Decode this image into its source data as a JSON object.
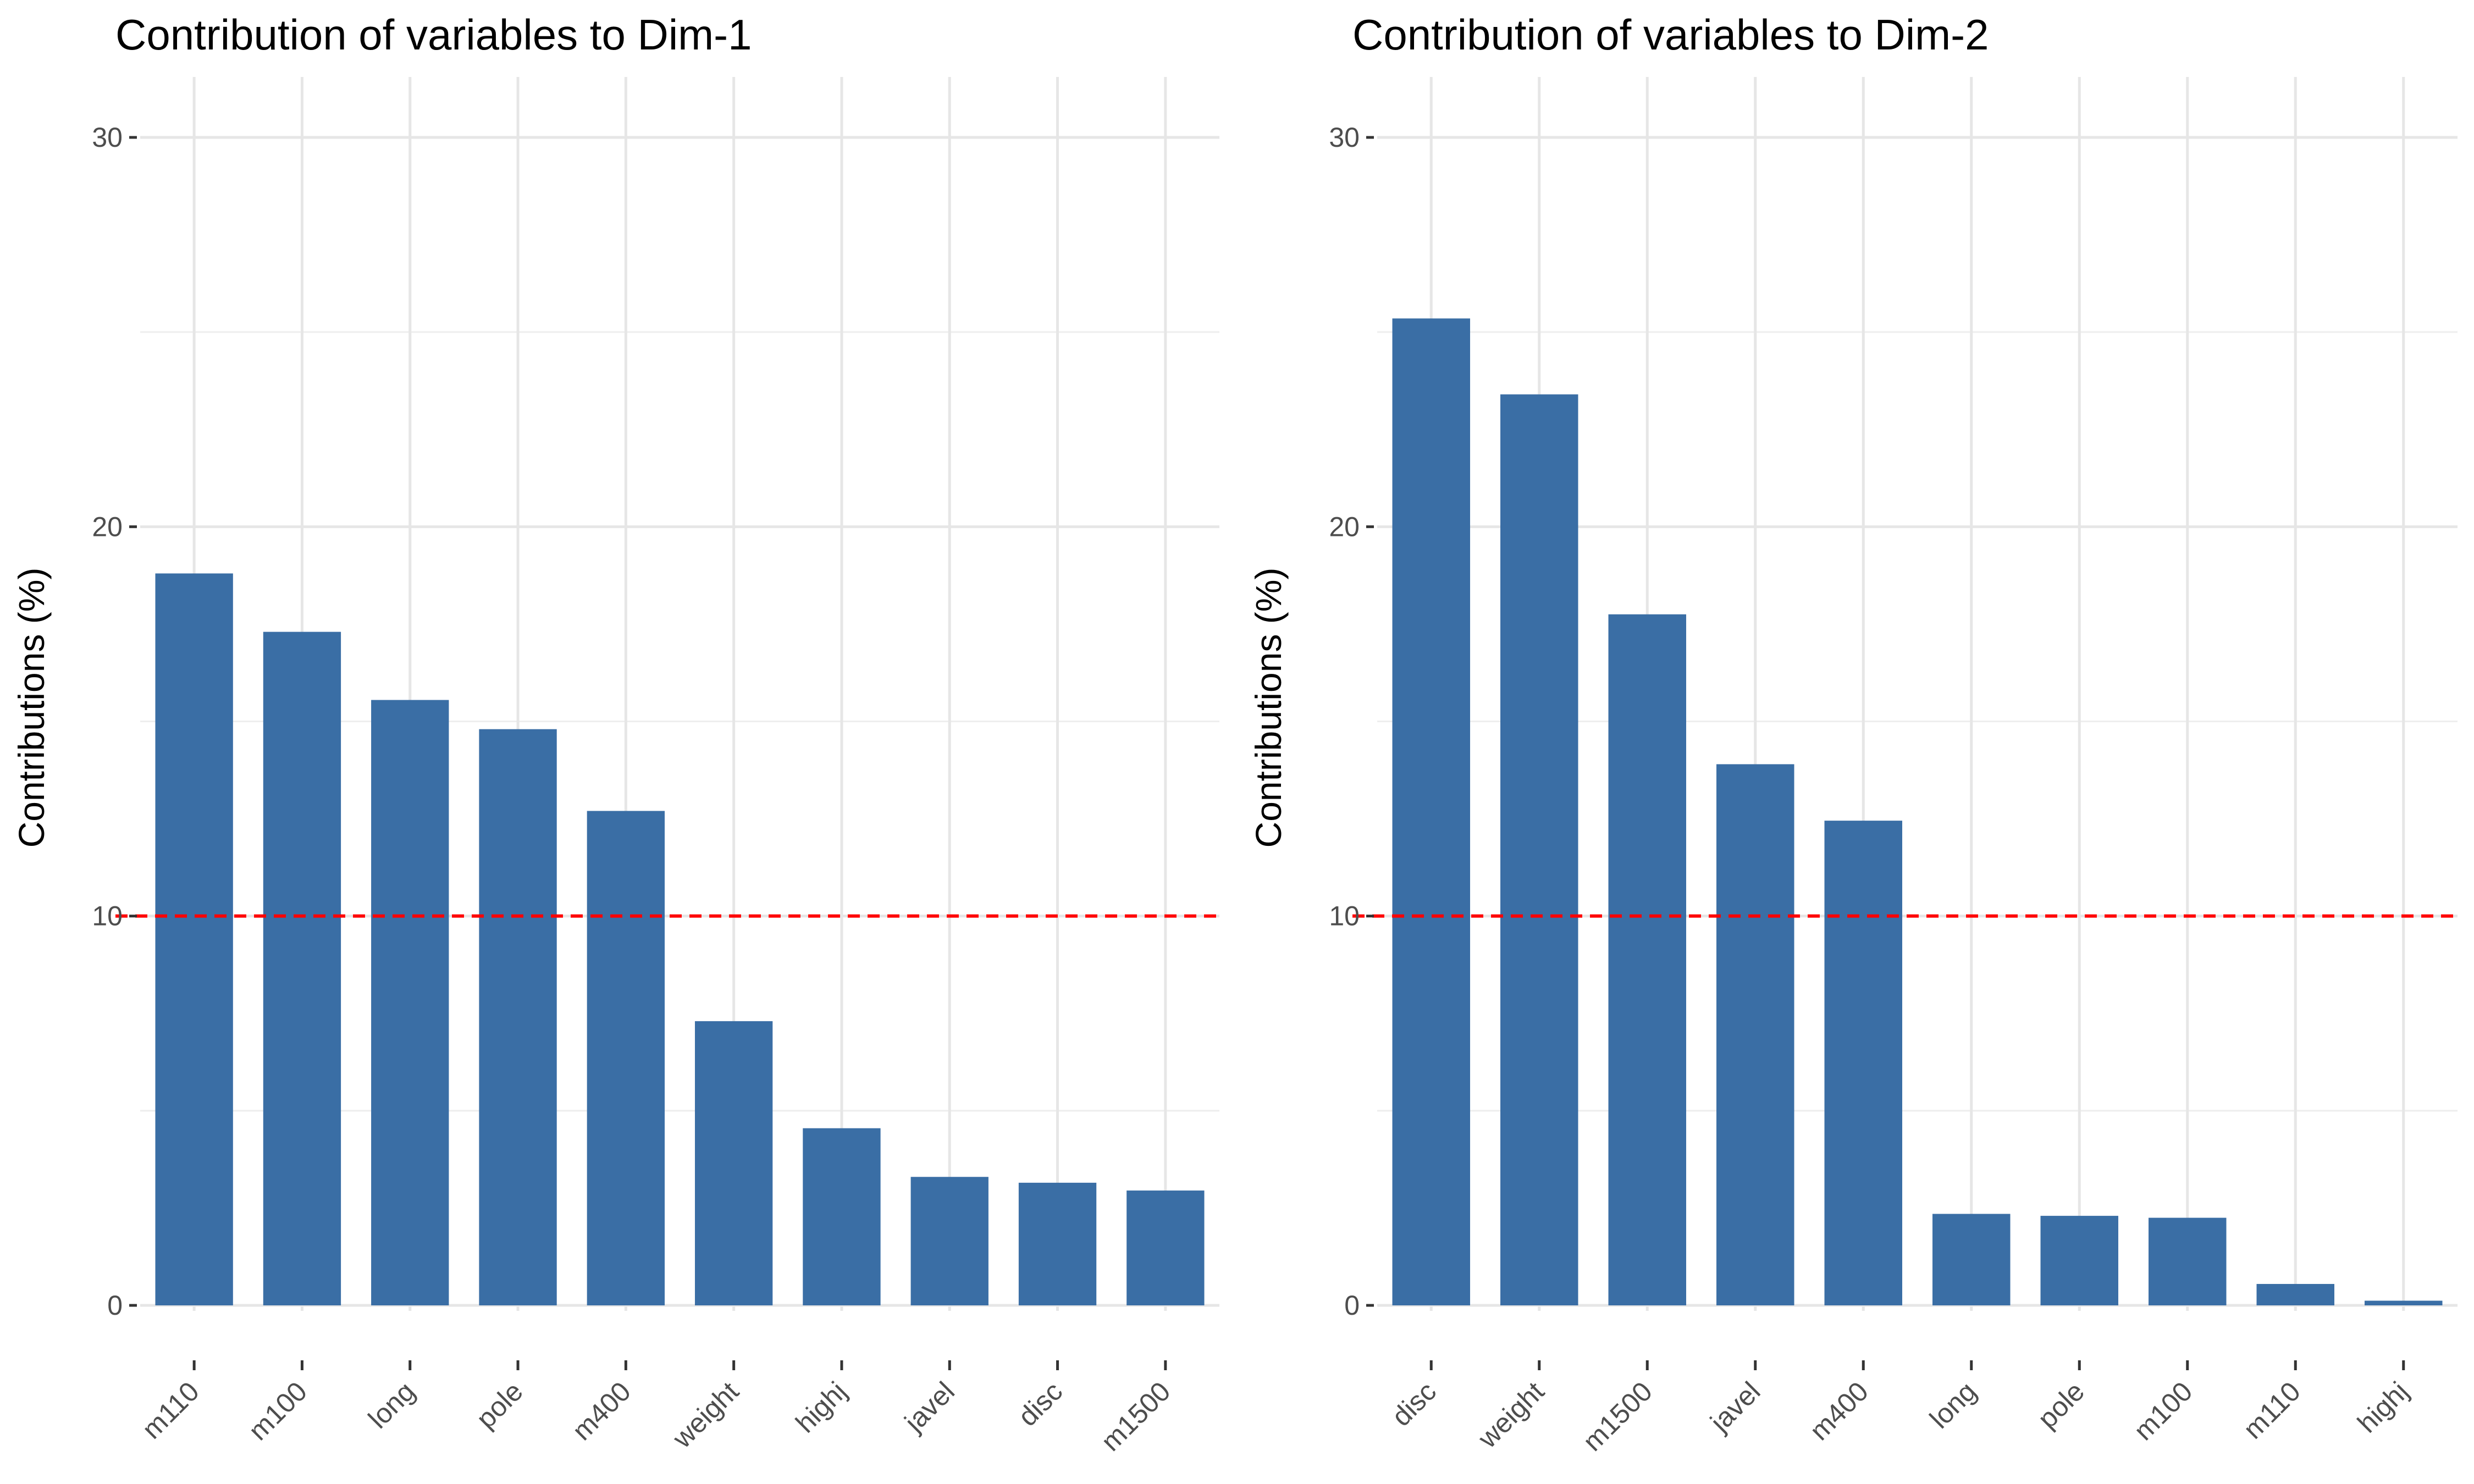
{
  "chart_data": [
    {
      "type": "bar",
      "title": "Contribution of variables to Dim-1",
      "xlabel": "",
      "ylabel": "Contributions (%)",
      "categories": [
        "m110",
        "m100",
        "long",
        "pole",
        "m400",
        "weight",
        "highj",
        "javel",
        "disc",
        "m1500"
      ],
      "values": [
        18.8,
        17.3,
        15.55,
        14.8,
        12.7,
        7.3,
        4.55,
        3.3,
        3.15,
        2.95
      ],
      "ylim": [
        0,
        30
      ],
      "yticks": [
        0,
        10,
        20,
        30
      ],
      "reference_line": 10,
      "grid": true,
      "bar_color": "#3a6ea5",
      "reference_color": "#ff0000"
    },
    {
      "type": "bar",
      "title": "Contribution of variables to Dim-2",
      "xlabel": "",
      "ylabel": "Contributions (%)",
      "categories": [
        "disc",
        "weight",
        "m1500",
        "javel",
        "m400",
        "long",
        "pole",
        "m100",
        "m110",
        "highj"
      ],
      "values": [
        25.35,
        23.4,
        17.75,
        13.9,
        12.45,
        2.35,
        2.3,
        2.25,
        0.55,
        0.12
      ],
      "ylim": [
        0,
        30
      ],
      "yticks": [
        0,
        10,
        20,
        30
      ],
      "reference_line": 10,
      "grid": true,
      "bar_color": "#3a6ea5",
      "reference_color": "#ff0000"
    }
  ]
}
